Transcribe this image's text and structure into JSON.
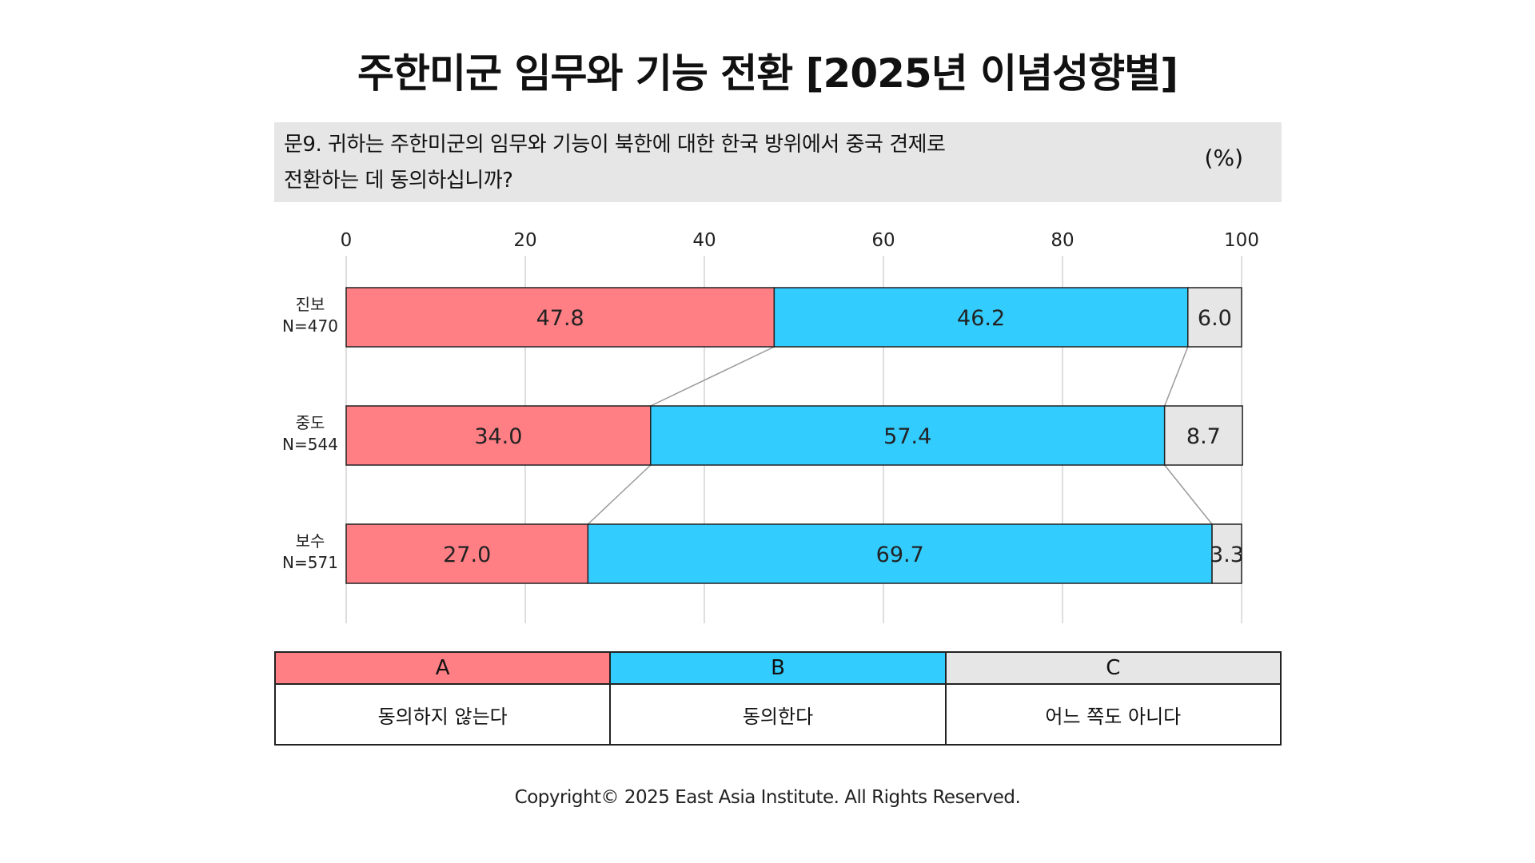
{
  "title": "주한미군 임무와 기능 전환 [2025년 이념성향별]",
  "question": {
    "text": "문9. 귀하는 주한미군의 임무와 기능이 북한에 대한 한국 방위에서 중국 견제로\n전환하는 데 동의하십니까?",
    "unit": "(%)"
  },
  "chart_data": {
    "type": "bar",
    "orientation": "horizontal",
    "stacked": true,
    "categories": [
      "진보\nN=470",
      "중도\nN=544",
      "보수\nN=571"
    ],
    "series": [
      {
        "name": "A",
        "values": [
          47.8,
          34.0,
          27.0
        ],
        "color": "#ff7f85"
      },
      {
        "name": "B",
        "values": [
          46.2,
          57.4,
          69.7
        ],
        "color": "#33ccff"
      },
      {
        "name": "C",
        "values": [
          6.0,
          8.7,
          3.3
        ],
        "color": "#e6e6e6"
      }
    ],
    "xlim": [
      0,
      100
    ],
    "xticks": [
      0,
      20,
      40,
      60,
      80,
      100
    ],
    "grid": true,
    "connector_lines": true
  },
  "legend": [
    {
      "key": "A",
      "label": "동의하지 않는다",
      "color": "#ff7f85"
    },
    {
      "key": "B",
      "label": "동의한다",
      "color": "#33ccff"
    },
    {
      "key": "C",
      "label": "어느 쪽도 아니다",
      "color": "#e6e6e6"
    }
  ],
  "copyright": "Copyright© 2025 East Asia Institute. All Rights Reserved."
}
